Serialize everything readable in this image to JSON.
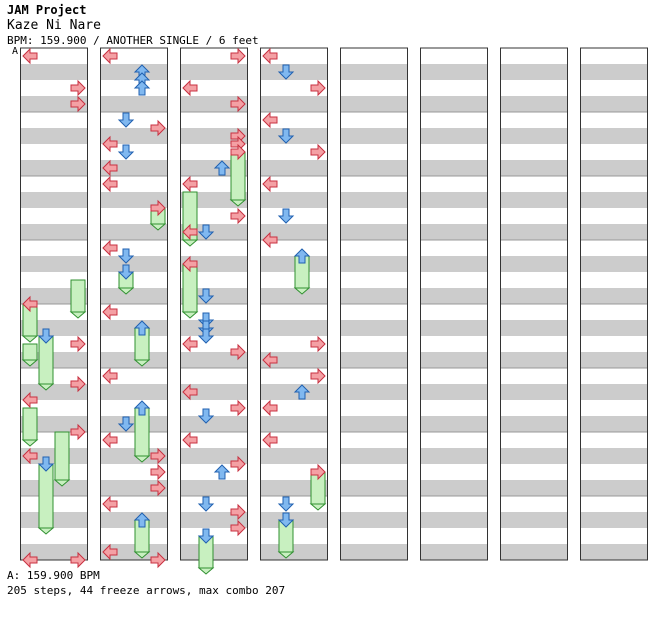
{
  "header": {
    "artist": "JAM Project",
    "title": "Kaze Ni Nare",
    "info": "BPM: 159.900 / ANOTHER SINGLE / 6 feet",
    "speed_marker": "A"
  },
  "footer": {
    "bpm_line": "A: 159.900 BPM",
    "stats_line": "205 steps, 44 freeze arrows, max combo 207"
  },
  "colors": {
    "left": "#f4a0a4",
    "left_stroke": "#c83040",
    "down": "#80b8f0",
    "down_stroke": "#2060b0",
    "up": "#80b8f0",
    "right": "#f4a0a4",
    "freeze": "#c8f0c0",
    "freeze_stroke": "#309030",
    "stripe": "#cccccc"
  },
  "chart_data": {
    "type": "stepchart",
    "lanes": [
      "left",
      "down",
      "up",
      "right"
    ],
    "measures_per_column": 8,
    "columns": 8,
    "notes": [
      {
        "m": 0,
        "b": 0,
        "l": 0
      },
      {
        "m": 0,
        "b": 2,
        "l": 3
      },
      {
        "m": 0,
        "b": 3,
        "l": 3
      },
      {
        "m": 3,
        "b": 2,
        "l": 3,
        "fl": 2
      },
      {
        "m": 3,
        "b": 3.5,
        "l": 0
      },
      {
        "m": 3,
        "b": 3.5,
        "l": 0,
        "fl": 2
      },
      {
        "m": 4,
        "b": 1.5,
        "l": 1
      },
      {
        "m": 4,
        "b": 1.5,
        "l": 1,
        "fl": 3
      },
      {
        "m": 4,
        "b": 2,
        "l": 0,
        "fl": 1
      },
      {
        "m": 4,
        "b": 2,
        "l": 3
      },
      {
        "m": 5,
        "b": 0.5,
        "l": 3
      },
      {
        "m": 5,
        "b": 1.5,
        "l": 0
      },
      {
        "m": 5,
        "b": 2,
        "l": 0,
        "fl": 2
      },
      {
        "m": 5,
        "b": 3.5,
        "l": 3
      },
      {
        "m": 5,
        "b": 3.5,
        "l": 2,
        "fl": 3
      },
      {
        "m": 6,
        "b": 1,
        "l": 0
      },
      {
        "m": 6,
        "b": 1.5,
        "l": 1
      },
      {
        "m": 6,
        "b": 1.5,
        "l": 1,
        "fl": 4
      },
      {
        "m": 7,
        "b": 3.5,
        "l": 0
      },
      {
        "m": 7,
        "b": 3.5,
        "l": 3
      },
      {
        "m": 8,
        "b": 0,
        "l": 0
      },
      {
        "m": 8,
        "b": 1,
        "l": 2
      },
      {
        "m": 8,
        "b": 1.5,
        "l": 2
      },
      {
        "m": 8,
        "b": 2,
        "l": 2
      },
      {
        "m": 9,
        "b": 0,
        "l": 1
      },
      {
        "m": 9,
        "b": 0.5,
        "l": 3
      },
      {
        "m": 9,
        "b": 1.5,
        "l": 0
      },
      {
        "m": 9,
        "b": 2,
        "l": 1
      },
      {
        "m": 9,
        "b": 3,
        "l": 0
      },
      {
        "m": 10,
        "b": 0,
        "l": 0
      },
      {
        "m": 10,
        "b": 1.5,
        "l": 3
      },
      {
        "m": 10,
        "b": 1.5,
        "l": 3,
        "fl": 1
      },
      {
        "m": 11,
        "b": 0,
        "l": 0
      },
      {
        "m": 11,
        "b": 0.5,
        "l": 1
      },
      {
        "m": 11,
        "b": 1.5,
        "l": 1
      },
      {
        "m": 11,
        "b": 1.5,
        "l": 1,
        "fl": 1
      },
      {
        "m": 12,
        "b": 0,
        "l": 0
      },
      {
        "m": 12,
        "b": 1,
        "l": 2
      },
      {
        "m": 12,
        "b": 1,
        "l": 2,
        "fl": 2
      },
      {
        "m": 13,
        "b": 0,
        "l": 0
      },
      {
        "m": 13,
        "b": 2,
        "l": 2
      },
      {
        "m": 13,
        "b": 2,
        "l": 2,
        "fl": 3
      },
      {
        "m": 13,
        "b": 3,
        "l": 1
      },
      {
        "m": 14,
        "b": 0,
        "l": 0
      },
      {
        "m": 14,
        "b": 1,
        "l": 3
      },
      {
        "m": 14,
        "b": 2,
        "l": 3
      },
      {
        "m": 14,
        "b": 3,
        "l": 3
      },
      {
        "m": 15,
        "b": 0,
        "l": 0
      },
      {
        "m": 15,
        "b": 1,
        "l": 2
      },
      {
        "m": 15,
        "b": 1,
        "l": 2,
        "fl": 2
      },
      {
        "m": 15,
        "b": 3,
        "l": 0
      },
      {
        "m": 15,
        "b": 3.5,
        "l": 3
      },
      {
        "m": 16,
        "b": 0,
        "l": 3
      },
      {
        "m": 16,
        "b": 2,
        "l": 0
      },
      {
        "m": 16,
        "b": 3,
        "l": 3
      },
      {
        "m": 17,
        "b": 1,
        "l": 3
      },
      {
        "m": 17,
        "b": 1.5,
        "l": 3
      },
      {
        "m": 17,
        "b": 2,
        "l": 3
      },
      {
        "m": 17,
        "b": 2,
        "l": 3,
        "fl": 3
      },
      {
        "m": 17,
        "b": 3,
        "l": 2
      },
      {
        "m": 18,
        "b": 0,
        "l": 0
      },
      {
        "m": 18,
        "b": 0.5,
        "l": 0,
        "fl": 3
      },
      {
        "m": 18,
        "b": 2,
        "l": 3
      },
      {
        "m": 18,
        "b": 3,
        "l": 1
      },
      {
        "m": 18,
        "b": 3,
        "l": 0
      },
      {
        "m": 19,
        "b": 1,
        "l": 0
      },
      {
        "m": 19,
        "b": 1,
        "l": 0,
        "fl": 3
      },
      {
        "m": 19,
        "b": 3,
        "l": 1
      },
      {
        "m": 20,
        "b": 0.5,
        "l": 1
      },
      {
        "m": 20,
        "b": 1,
        "l": 1
      },
      {
        "m": 20,
        "b": 1.5,
        "l": 1
      },
      {
        "m": 20,
        "b": 2,
        "l": 0
      },
      {
        "m": 20,
        "b": 2.5,
        "l": 3
      },
      {
        "m": 21,
        "b": 1,
        "l": 0
      },
      {
        "m": 21,
        "b": 2,
        "l": 3
      },
      {
        "m": 21,
        "b": 2.5,
        "l": 1
      },
      {
        "m": 22,
        "b": 0,
        "l": 0
      },
      {
        "m": 22,
        "b": 1.5,
        "l": 3
      },
      {
        "m": 22,
        "b": 2,
        "l": 2
      },
      {
        "m": 23,
        "b": 0,
        "l": 1
      },
      {
        "m": 23,
        "b": 0.5,
        "l": 3
      },
      {
        "m": 23,
        "b": 1.5,
        "l": 3
      },
      {
        "m": 23,
        "b": 2,
        "l": 1
      },
      {
        "m": 23,
        "b": 2,
        "l": 1,
        "fl": 2
      },
      {
        "m": 24,
        "b": 0,
        "l": 0
      },
      {
        "m": 24,
        "b": 1,
        "l": 1
      },
      {
        "m": 24,
        "b": 2,
        "l": 3
      },
      {
        "m": 25,
        "b": 0,
        "l": 0
      },
      {
        "m": 25,
        "b": 1,
        "l": 1
      },
      {
        "m": 25,
        "b": 2,
        "l": 3
      },
      {
        "m": 26,
        "b": 0,
        "l": 0
      },
      {
        "m": 26,
        "b": 2,
        "l": 1
      },
      {
        "m": 26,
        "b": 3.5,
        "l": 0
      },
      {
        "m": 27,
        "b": 0.5,
        "l": 2
      },
      {
        "m": 27,
        "b": 0.5,
        "l": 2,
        "fl": 2
      },
      {
        "m": 28,
        "b": 2,
        "l": 3
      },
      {
        "m": 28,
        "b": 3,
        "l": 0
      },
      {
        "m": 29,
        "b": 0,
        "l": 3
      },
      {
        "m": 29,
        "b": 1,
        "l": 2
      },
      {
        "m": 29,
        "b": 2,
        "l": 0
      },
      {
        "m": 30,
        "b": 0,
        "l": 0
      },
      {
        "m": 30,
        "b": 2,
        "l": 3
      },
      {
        "m": 30,
        "b": 2,
        "l": 3,
        "fl": 2
      },
      {
        "m": 31,
        "b": 0,
        "l": 1
      },
      {
        "m": 31,
        "b": 1,
        "l": 1
      },
      {
        "m": 31,
        "b": 1,
        "l": 1,
        "fl": 2
      }
    ]
  }
}
